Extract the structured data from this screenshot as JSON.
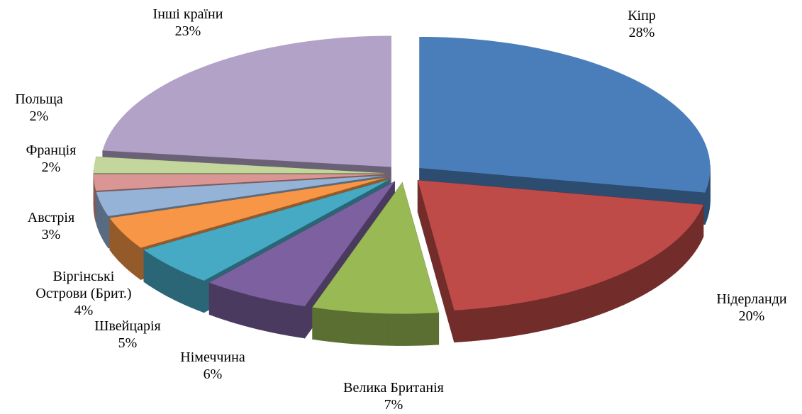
{
  "chart_data": {
    "type": "pie",
    "categories": [
      "Кіпр",
      "Нідерланди",
      "Велика Британія",
      "Німеччина",
      "Швейцарія",
      "Віргінські Острови (Брит.)",
      "Австрія",
      "Франція",
      "Польща",
      "Інші країни"
    ],
    "values": [
      28,
      20,
      7,
      6,
      5,
      4,
      3,
      2,
      2,
      23
    ],
    "value_labels": [
      "28%",
      "20%",
      "7%",
      "6%",
      "5%",
      "4%",
      "3%",
      "2%",
      "2%",
      "23%"
    ],
    "colors": [
      "#4a7ebb",
      "#be4b48",
      "#98b954",
      "#7d60a0",
      "#46aac5",
      "#f79646",
      "#95b3d7",
      "#d99694",
      "#c3d69b",
      "#b3a2c7"
    ]
  }
}
